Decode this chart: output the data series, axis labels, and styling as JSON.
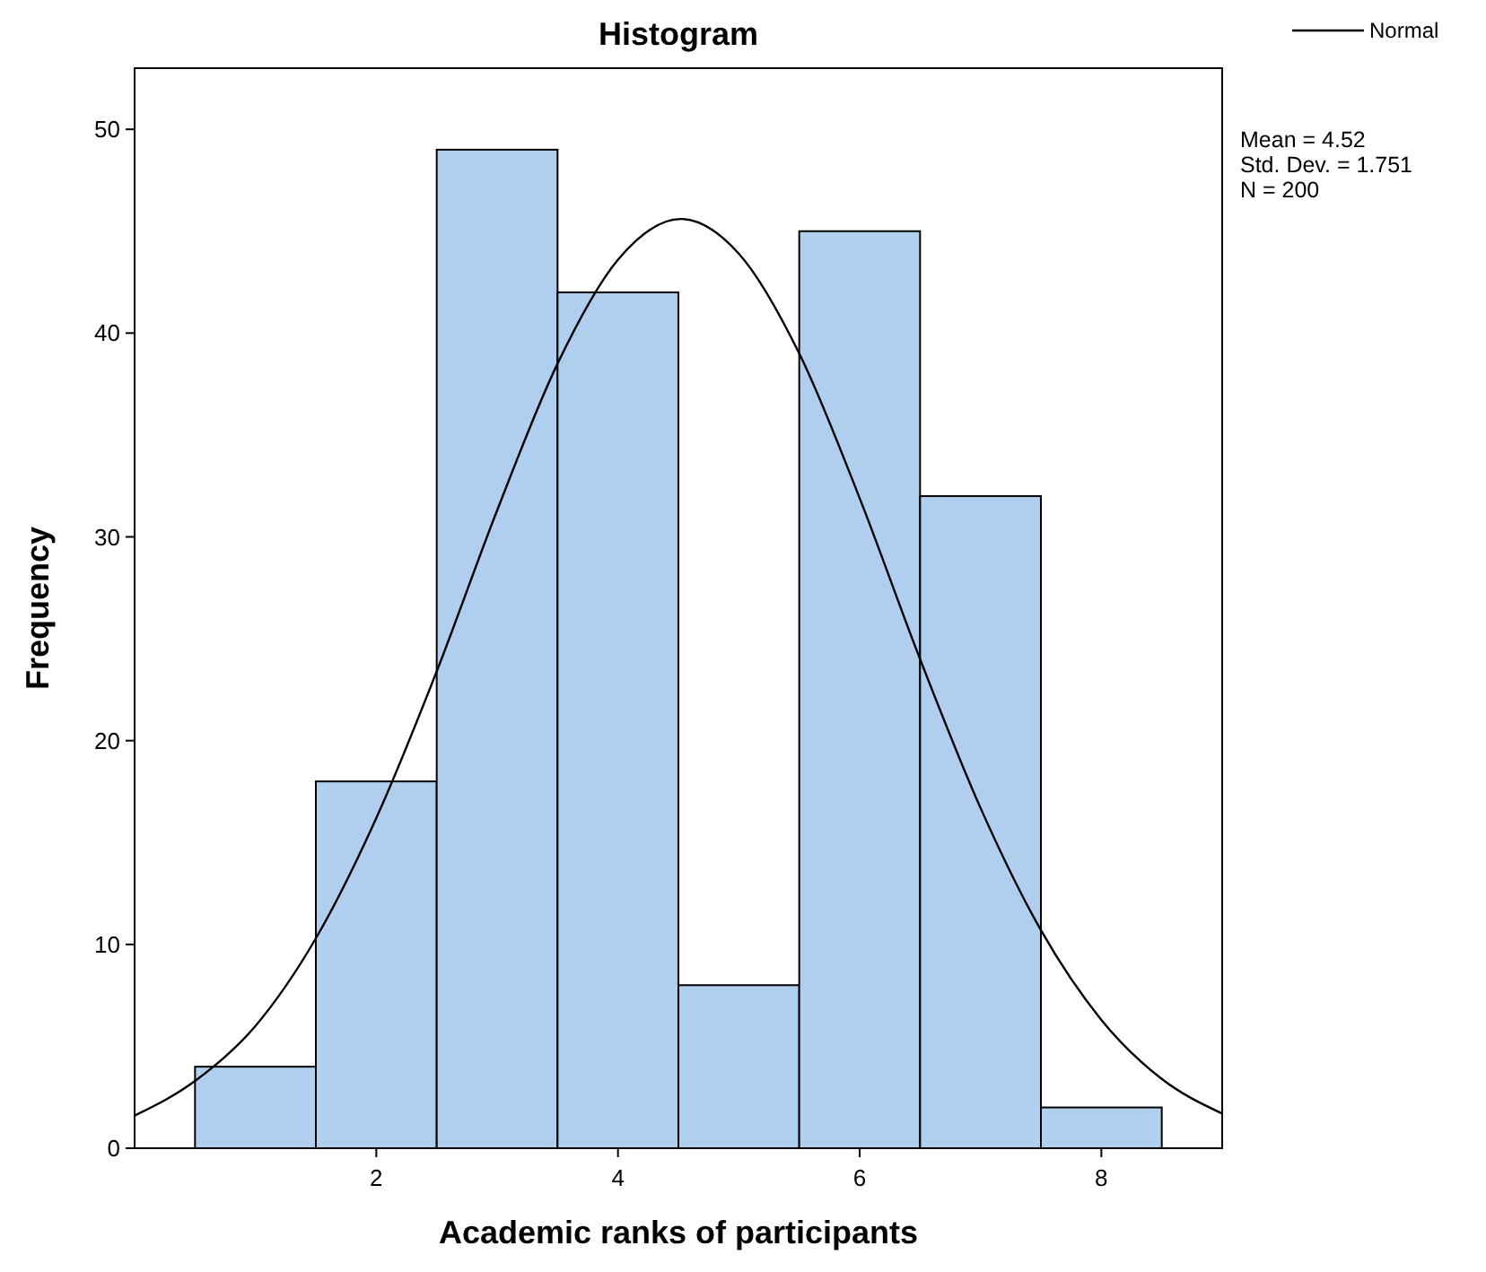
{
  "chart_data": {
    "type": "histogram",
    "title": "Histogram",
    "xlabel": "Academic ranks of participants",
    "ylabel": "Frequency",
    "bins": [
      0.5,
      1.5,
      2.5,
      3.5,
      4.5,
      5.5,
      6.5,
      7.5,
      8.5
    ],
    "values": [
      4,
      18,
      49,
      42,
      8,
      45,
      32,
      2
    ],
    "color": "#b0cfee",
    "xlim": [
      0,
      9
    ],
    "xticks": [
      2,
      4,
      6,
      8
    ],
    "ylim": [
      0,
      53
    ],
    "yticks": [
      0,
      10,
      20,
      30,
      40,
      50
    ],
    "grid": false,
    "legend": "top right",
    "series": [
      {
        "name": "Normal",
        "type": "line",
        "color": "#000000",
        "x": [
          0,
          0.5,
          1,
          1.5,
          2,
          2.5,
          3,
          3.5,
          4,
          4.52,
          5,
          5.5,
          6,
          6.5,
          7,
          7.5,
          8,
          8.5,
          9
        ],
        "values": [
          1.6,
          3.3,
          6.0,
          10.3,
          16.2,
          23.4,
          31.3,
          38.5,
          43.6,
          45.6,
          43.9,
          39.0,
          31.9,
          24.0,
          16.7,
          10.7,
          6.3,
          3.4,
          1.7
        ]
      }
    ],
    "annotations": [
      "Mean = 4.52",
      "Std. Dev. = 1.751",
      "N = 200"
    ]
  }
}
